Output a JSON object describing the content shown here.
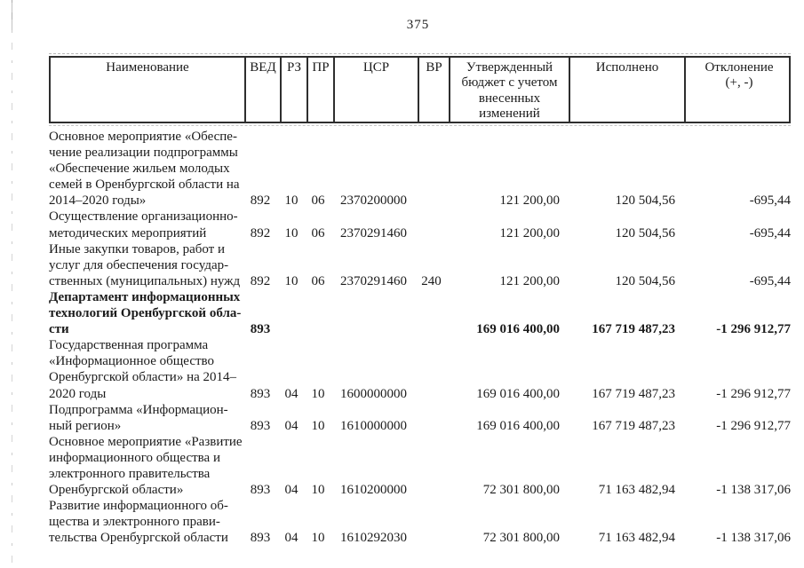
{
  "page": {
    "number": "375"
  },
  "table": {
    "headers": [
      "Наименование",
      "ВЕД",
      "РЗ",
      "ПР",
      "ЦСР",
      "ВР",
      "Утвержденный\nбюджет с учетом\nвнесенных\nизменений",
      "Исполнено",
      "Отклонение\n(+, -)"
    ],
    "rows": [
      {
        "name": "Основное мероприятие «Обеспе-\nчение реализации подпрограммы\n«Обеспечение жильем молодых\nсемей в Оренбургской области на\n2014–2020 годы»",
        "ved": "892",
        "rz": "10",
        "pr": "06",
        "csr": "2370200000",
        "vr": "",
        "approved": "121 200,00",
        "executed": "120 504,56",
        "deviation": "-695,44",
        "bold": false
      },
      {
        "name": "Осуществление организационно-\nметодических мероприятий",
        "ved": "892",
        "rz": "10",
        "pr": "06",
        "csr": "2370291460",
        "vr": "",
        "approved": "121 200,00",
        "executed": "120 504,56",
        "deviation": "-695,44",
        "bold": false
      },
      {
        "name": "Иные закупки товаров, работ и\nуслуг для обеспечения государ-\nственных (муниципальных) нужд",
        "ved": "892",
        "rz": "10",
        "pr": "06",
        "csr": "2370291460",
        "vr": "240",
        "approved": "121 200,00",
        "executed": "120 504,56",
        "deviation": "-695,44",
        "bold": false
      },
      {
        "name": "Департамент информационных\nтехнологий Оренбургской обла-\nсти",
        "ved": "893",
        "rz": "",
        "pr": "",
        "csr": "",
        "vr": "",
        "approved": "169 016 400,00",
        "executed": "167 719 487,23",
        "deviation": "-1 296 912,77",
        "bold": true
      },
      {
        "name": "Государственная программа\n«Информационное общество\nОренбургской области» на 2014–\n2020 годы",
        "ved": "893",
        "rz": "04",
        "pr": "10",
        "csr": "1600000000",
        "vr": "",
        "approved": "169 016 400,00",
        "executed": "167 719 487,23",
        "deviation": "-1 296 912,77",
        "bold": false
      },
      {
        "name": "Подпрограмма «Информацион-\nный регион»",
        "ved": "893",
        "rz": "04",
        "pr": "10",
        "csr": "1610000000",
        "vr": "",
        "approved": "169 016 400,00",
        "executed": "167 719 487,23",
        "deviation": "-1 296 912,77",
        "bold": false
      },
      {
        "name": "Основное мероприятие «Развитие\nинформационного общества и\nэлектронного правительства\nОренбургской области»",
        "ved": "893",
        "rz": "04",
        "pr": "10",
        "csr": "1610200000",
        "vr": "",
        "approved": "72 301 800,00",
        "executed": "71 163 482,94",
        "deviation": "-1 138 317,06",
        "bold": false
      },
      {
        "name": "Развитие информационного об-\nщества и электронного прави-\nтельства Оренбургской области",
        "ved": "893",
        "rz": "04",
        "pr": "10",
        "csr": "1610292030",
        "vr": "",
        "approved": "72 301 800,00",
        "executed": "71 163 482,94",
        "deviation": "-1 138 317,06",
        "bold": false
      }
    ]
  }
}
